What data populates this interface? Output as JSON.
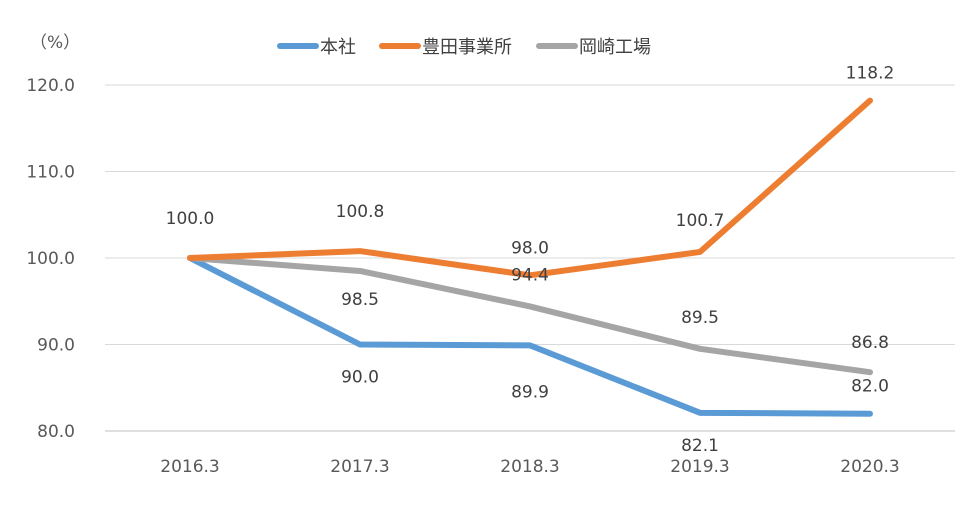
{
  "chart_data": {
    "type": "line",
    "unit_label": "（%）",
    "categories": [
      "2016.3",
      "2017.3",
      "2018.3",
      "2019.3",
      "2020.3"
    ],
    "ylim": [
      80,
      120
    ],
    "yticks": [
      "80.0",
      "90.0",
      "100.0",
      "110.0",
      "120.0"
    ],
    "grid": true,
    "legend_position": "top",
    "series": [
      {
        "name": "本社",
        "color": "#5B9BD5",
        "values": [
          100.0,
          90.0,
          89.9,
          82.1,
          82.0
        ],
        "labels": [
          "100.0",
          "90.0",
          "89.9",
          "82.1",
          "82.0"
        ]
      },
      {
        "name": "豊田事業所",
        "color": "#ED7D31",
        "values": [
          100.0,
          100.8,
          98.0,
          100.7,
          118.2
        ],
        "labels": [
          "100.0",
          "100.8",
          "98.0",
          "100.7",
          "118.2"
        ]
      },
      {
        "name": "岡崎工場",
        "color": "#A5A5A5",
        "values": [
          100.0,
          98.5,
          94.4,
          89.5,
          86.8
        ],
        "labels": [
          "100.0",
          "98.5",
          "94.4",
          "89.5",
          "86.8"
        ]
      }
    ]
  }
}
